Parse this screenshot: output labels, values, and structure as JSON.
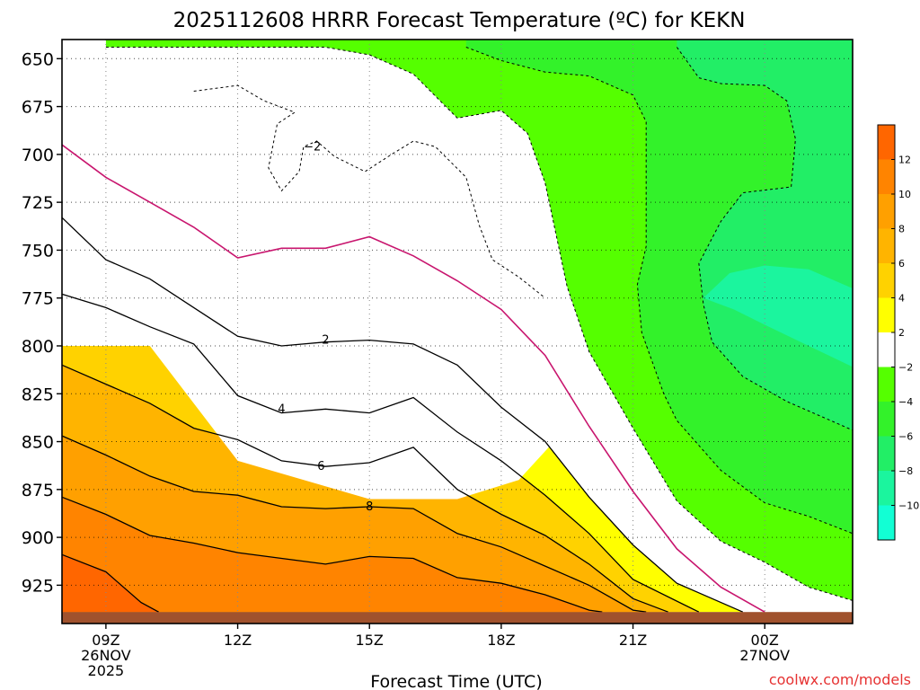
{
  "chart_data": {
    "type": "filled-contour",
    "title": "2025112608 HRRR Forecast Temperature (ºC) for KEKN",
    "xlabel": "Forecast Time (UTC)",
    "ylabel": "",
    "credit": "coolwx.com/models",
    "x_range_hours": [
      8,
      26
    ],
    "y_range_hpa": [
      640,
      945
    ],
    "y_axis_inverted": true,
    "grid": true,
    "x_ticks": [
      {
        "hour": 9,
        "lines": [
          "09Z",
          "26NOV",
          "2025"
        ]
      },
      {
        "hour": 12,
        "lines": [
          "12Z"
        ]
      },
      {
        "hour": 15,
        "lines": [
          "15Z"
        ]
      },
      {
        "hour": 18,
        "lines": [
          "18Z"
        ]
      },
      {
        "hour": 21,
        "lines": [
          "21Z"
        ]
      },
      {
        "hour": 24,
        "lines": [
          "00Z",
          "27NOV"
        ]
      }
    ],
    "y_ticks": [
      650,
      675,
      700,
      725,
      750,
      775,
      800,
      825,
      850,
      875,
      900,
      925
    ],
    "ground_pressure_hpa": 939,
    "colorbar": {
      "bins": [
        {
          "lo": 12,
          "hi": 14,
          "color": "#ff6600"
        },
        {
          "lo": 10,
          "hi": 12,
          "color": "#ff8400"
        },
        {
          "lo": 8,
          "hi": 10,
          "color": "#ffa000"
        },
        {
          "lo": 6,
          "hi": 8,
          "color": "#ffb400"
        },
        {
          "lo": 4,
          "hi": 6,
          "color": "#ffd200"
        },
        {
          "lo": 2,
          "hi": 4,
          "color": "#ffff00"
        },
        {
          "lo": -2,
          "hi": 2,
          "color": "#ffffff"
        },
        {
          "lo": -4,
          "hi": -2,
          "color": "#55ff00"
        },
        {
          "lo": -6,
          "hi": -4,
          "color": "#33f22a"
        },
        {
          "lo": -8,
          "hi": -6,
          "color": "#22ee66"
        },
        {
          "lo": -10,
          "hi": -8,
          "color": "#1bf59e"
        },
        {
          "lo": -12,
          "hi": -10,
          "color": "#12ffd4"
        }
      ],
      "tick_labels": [
        "12",
        "10",
        "8",
        "6",
        "4",
        "2",
        "−2",
        "−4",
        "−6",
        "−8",
        "−10"
      ]
    },
    "contour_labels": [
      {
        "value": "−2",
        "hour": 13.7,
        "hpa": 696
      },
      {
        "value": "2",
        "hour": 14.0,
        "hpa": 797
      },
      {
        "value": "4",
        "hour": 13.0,
        "hpa": 833
      },
      {
        "value": "6",
        "hour": 13.9,
        "hpa": 863
      },
      {
        "value": "8",
        "hour": 15.0,
        "hpa": 884
      }
    ],
    "isotherms": [
      {
        "temp": 0,
        "style": "freezing",
        "points": [
          [
            8.0,
            695
          ],
          [
            9.0,
            712
          ],
          [
            10.0,
            725
          ],
          [
            11.0,
            738
          ],
          [
            12.0,
            754
          ],
          [
            13.0,
            749
          ],
          [
            14.0,
            749
          ],
          [
            15.0,
            743
          ],
          [
            16.0,
            753
          ],
          [
            17.0,
            766
          ],
          [
            18.0,
            781
          ],
          [
            19.0,
            805
          ],
          [
            20.0,
            842
          ],
          [
            21.0,
            876
          ],
          [
            22.0,
            906
          ],
          [
            23.0,
            926
          ],
          [
            24.0,
            939
          ]
        ]
      },
      {
        "temp": 2,
        "style": "solid",
        "points": [
          [
            8.0,
            733
          ],
          [
            9.0,
            755
          ],
          [
            10.0,
            765
          ],
          [
            11.0,
            780
          ],
          [
            12.0,
            795
          ],
          [
            13.0,
            800
          ],
          [
            14.0,
            798
          ],
          [
            15.0,
            797
          ],
          [
            16.0,
            799
          ],
          [
            17.0,
            810
          ],
          [
            18.0,
            832
          ],
          [
            19.0,
            850
          ],
          [
            20.0,
            879
          ],
          [
            21.0,
            904
          ],
          [
            22.0,
            924
          ],
          [
            23.5,
            939
          ]
        ]
      },
      {
        "temp": 4,
        "style": "solid",
        "points": [
          [
            8.0,
            773
          ],
          [
            9.0,
            780
          ],
          [
            10.0,
            790
          ],
          [
            11.0,
            799
          ],
          [
            12.0,
            826
          ],
          [
            13.0,
            835
          ],
          [
            14.0,
            833
          ],
          [
            15.0,
            835
          ],
          [
            16.0,
            827
          ],
          [
            17.0,
            845
          ],
          [
            18.0,
            860
          ],
          [
            19.0,
            878
          ],
          [
            20.0,
            898
          ],
          [
            21.0,
            922
          ],
          [
            22.5,
            939
          ]
        ]
      },
      {
        "temp": 6,
        "style": "solid",
        "points": [
          [
            8.0,
            810
          ],
          [
            9.0,
            820
          ],
          [
            10.0,
            830
          ],
          [
            11.0,
            843
          ],
          [
            12.0,
            849
          ],
          [
            13.0,
            860
          ],
          [
            14.0,
            863
          ],
          [
            15.0,
            861
          ],
          [
            16.0,
            853
          ],
          [
            17.0,
            875
          ],
          [
            18.0,
            888
          ],
          [
            19.0,
            899
          ],
          [
            20.0,
            914
          ],
          [
            21.0,
            932
          ],
          [
            21.8,
            939
          ]
        ]
      },
      {
        "temp": 8,
        "style": "solid",
        "points": [
          [
            8.0,
            847
          ],
          [
            9.0,
            857
          ],
          [
            10.0,
            868
          ],
          [
            11.0,
            876
          ],
          [
            12.0,
            878
          ],
          [
            13.0,
            884
          ],
          [
            14.0,
            885
          ],
          [
            15.0,
            884
          ],
          [
            16.0,
            885
          ],
          [
            17.0,
            898
          ],
          [
            18.0,
            905
          ],
          [
            19.0,
            915
          ],
          [
            20.0,
            925
          ],
          [
            21.0,
            938
          ],
          [
            21.3,
            939
          ]
        ]
      },
      {
        "temp": 10,
        "style": "solid",
        "points": [
          [
            8.0,
            879
          ],
          [
            9.0,
            888
          ],
          [
            10.0,
            899
          ],
          [
            11.0,
            903
          ],
          [
            12.0,
            908
          ],
          [
            13.0,
            911
          ],
          [
            14.0,
            914
          ],
          [
            15.0,
            910
          ],
          [
            16.0,
            911
          ],
          [
            17.0,
            921
          ],
          [
            18.0,
            924
          ],
          [
            19.0,
            930
          ],
          [
            20.0,
            938
          ],
          [
            20.3,
            939
          ]
        ]
      },
      {
        "temp": 12,
        "style": "solid",
        "points": [
          [
            8.0,
            909
          ],
          [
            9.0,
            918
          ],
          [
            9.8,
            934
          ],
          [
            10.2,
            939
          ]
        ]
      },
      {
        "temp": -4,
        "style": "dashed",
        "points": [
          [
            9.0,
            644
          ],
          [
            10.0,
            644
          ],
          [
            12.0,
            644
          ],
          [
            14.0,
            644
          ],
          [
            15.0,
            648
          ],
          [
            16.0,
            658
          ],
          [
            17.0,
            681
          ],
          [
            18.0,
            677
          ],
          [
            18.6,
            689
          ],
          [
            19.0,
            715
          ],
          [
            19.5,
            769
          ],
          [
            20.0,
            803
          ],
          [
            20.5,
            823
          ],
          [
            21.0,
            843
          ],
          [
            22.0,
            881
          ],
          [
            23.0,
            902
          ],
          [
            24.0,
            913
          ],
          [
            25.0,
            926
          ],
          [
            26.0,
            933
          ]
        ]
      },
      {
        "temp": -6,
        "style": "dashed",
        "points": [
          [
            17.2,
            644
          ],
          [
            18.0,
            651
          ],
          [
            19.0,
            657
          ],
          [
            20.0,
            659
          ],
          [
            21.0,
            669
          ],
          [
            21.3,
            683
          ],
          [
            21.3,
            748
          ],
          [
            21.1,
            768
          ],
          [
            21.2,
            793
          ],
          [
            21.7,
            825
          ],
          [
            22.0,
            839
          ],
          [
            23.0,
            865
          ],
          [
            24.0,
            882
          ],
          [
            25.0,
            889
          ],
          [
            26.0,
            898
          ]
        ]
      },
      {
        "temp": -8,
        "style": "dashed",
        "points": [
          [
            22.0,
            644
          ],
          [
            22.5,
            660
          ],
          [
            23.0,
            663
          ],
          [
            24.0,
            664
          ],
          [
            24.5,
            672
          ],
          [
            24.7,
            692
          ],
          [
            24.6,
            717
          ],
          [
            23.5,
            720
          ],
          [
            23.0,
            735
          ],
          [
            22.5,
            757
          ],
          [
            22.6,
            778
          ],
          [
            22.8,
            798
          ],
          [
            23.5,
            816
          ],
          [
            24.5,
            829
          ],
          [
            25.5,
            839
          ],
          [
            26.0,
            844
          ]
        ]
      }
    ]
  }
}
